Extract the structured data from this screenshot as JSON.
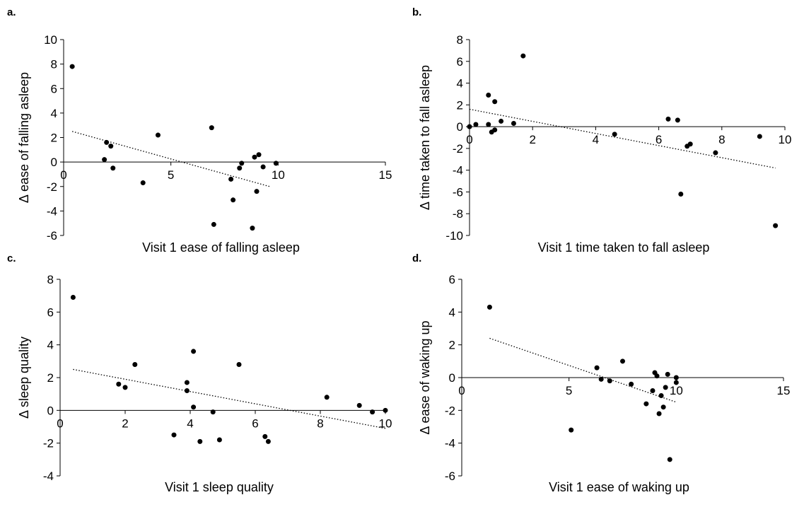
{
  "chart_data": [
    {
      "panel": "a.",
      "type": "scatter",
      "xlabel": "Visit 1 ease of falling asleep",
      "ylabel": "Δ ease of falling asleep",
      "xlim": [
        0,
        15
      ],
      "ylim": [
        -6,
        10
      ],
      "xticks": [
        0,
        5,
        10,
        15
      ],
      "yticks": [
        -6,
        -4,
        -2,
        0,
        2,
        4,
        6,
        8,
        10
      ],
      "points": [
        [
          0.4,
          7.8
        ],
        [
          1.9,
          0.2
        ],
        [
          2.0,
          1.6
        ],
        [
          2.2,
          1.3
        ],
        [
          2.3,
          -0.5
        ],
        [
          3.7,
          -1.7
        ],
        [
          4.4,
          2.2
        ],
        [
          6.9,
          2.8
        ],
        [
          7.0,
          -5.1
        ],
        [
          7.8,
          -1.4
        ],
        [
          7.9,
          -3.1
        ],
        [
          8.2,
          -0.5
        ],
        [
          8.3,
          -0.1
        ],
        [
          8.8,
          -5.4
        ],
        [
          8.9,
          0.4
        ],
        [
          9.0,
          -2.4
        ],
        [
          9.1,
          0.6
        ],
        [
          9.3,
          -0.4
        ],
        [
          9.9,
          -0.1
        ]
      ],
      "trend": [
        [
          0.4,
          2.5
        ],
        [
          9.6,
          -2.0
        ]
      ]
    },
    {
      "panel": "b.",
      "type": "scatter",
      "xlabel": "Visit 1 time taken to fall asleep",
      "ylabel": "Δ time taken to fall asleep",
      "xlim": [
        0,
        10
      ],
      "ylim": [
        -10,
        8
      ],
      "xticks": [
        0,
        2,
        4,
        6,
        8,
        10
      ],
      "yticks": [
        -10,
        -8,
        -6,
        -4,
        -2,
        0,
        2,
        4,
        6,
        8
      ],
      "points": [
        [
          0.0,
          0.0
        ],
        [
          0.2,
          0.2
        ],
        [
          0.6,
          0.2
        ],
        [
          0.6,
          2.9
        ],
        [
          0.7,
          -0.5
        ],
        [
          0.8,
          -0.3
        ],
        [
          0.8,
          2.3
        ],
        [
          1.0,
          0.5
        ],
        [
          1.4,
          0.3
        ],
        [
          1.7,
          6.5
        ],
        [
          4.6,
          -0.7
        ],
        [
          6.3,
          0.7
        ],
        [
          6.6,
          0.6
        ],
        [
          6.7,
          -6.2
        ],
        [
          6.9,
          -1.8
        ],
        [
          7.0,
          -1.6
        ],
        [
          7.8,
          -2.4
        ],
        [
          9.2,
          -0.9
        ],
        [
          9.7,
          -9.1
        ]
      ],
      "trend": [
        [
          0.0,
          1.6
        ],
        [
          9.7,
          -3.8
        ]
      ]
    },
    {
      "panel": "c.",
      "type": "scatter",
      "xlabel": "Visit 1 sleep quality",
      "ylabel": "Δ sleep quality",
      "xlim": [
        0,
        10
      ],
      "ylim": [
        -4,
        8
      ],
      "xticks": [
        0,
        2,
        4,
        6,
        8,
        10
      ],
      "yticks": [
        -4,
        -2,
        0,
        2,
        4,
        6,
        8
      ],
      "points": [
        [
          0.4,
          6.9
        ],
        [
          1.8,
          1.6
        ],
        [
          2.0,
          1.4
        ],
        [
          2.3,
          2.8
        ],
        [
          3.5,
          -1.5
        ],
        [
          3.9,
          1.7
        ],
        [
          3.9,
          1.2
        ],
        [
          4.1,
          0.2
        ],
        [
          4.1,
          3.6
        ],
        [
          4.3,
          -1.9
        ],
        [
          4.7,
          -0.1
        ],
        [
          4.9,
          -1.8
        ],
        [
          5.5,
          2.8
        ],
        [
          6.3,
          -1.6
        ],
        [
          6.4,
          -1.9
        ],
        [
          8.2,
          0.8
        ],
        [
          9.2,
          0.3
        ],
        [
          9.6,
          -0.1
        ],
        [
          10.0,
          0.0
        ]
      ],
      "trend": [
        [
          0.4,
          2.5
        ],
        [
          10.0,
          -1.1
        ]
      ]
    },
    {
      "panel": "d.",
      "type": "scatter",
      "xlabel": "Visit 1 ease of waking up",
      "ylabel": "Δ ease of waking up",
      "xlim": [
        0,
        15
      ],
      "ylim": [
        -6,
        6
      ],
      "xticks": [
        0,
        5,
        10,
        15
      ],
      "yticks": [
        -6,
        -4,
        -2,
        0,
        2,
        4,
        6
      ],
      "points": [
        [
          1.3,
          4.3
        ],
        [
          5.1,
          -3.2
        ],
        [
          6.3,
          0.6
        ],
        [
          6.5,
          -0.1
        ],
        [
          6.9,
          -0.2
        ],
        [
          7.5,
          1.0
        ],
        [
          7.9,
          -0.4
        ],
        [
          8.6,
          -1.6
        ],
        [
          8.9,
          -0.8
        ],
        [
          9.0,
          0.3
        ],
        [
          9.1,
          0.1
        ],
        [
          9.2,
          -2.2
        ],
        [
          9.3,
          -1.1
        ],
        [
          9.4,
          -1.8
        ],
        [
          9.5,
          -0.6
        ],
        [
          9.6,
          0.2
        ],
        [
          9.7,
          -5.0
        ],
        [
          10.0,
          0.0
        ],
        [
          10.0,
          -0.3
        ]
      ],
      "trend": [
        [
          1.3,
          2.4
        ],
        [
          10.0,
          -1.5
        ]
      ]
    }
  ]
}
